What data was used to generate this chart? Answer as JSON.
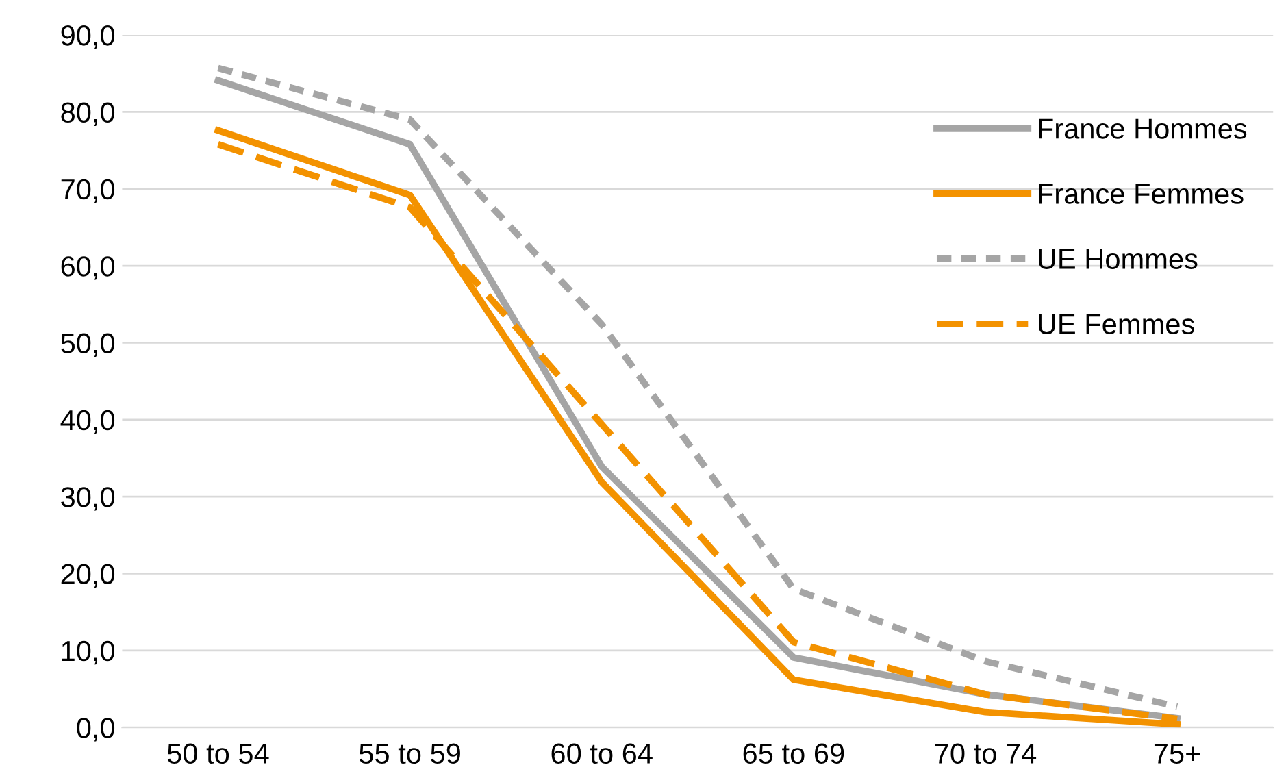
{
  "chart_data": {
    "type": "line",
    "categories": [
      "50 to 54",
      "55 to 59",
      "60 to 64",
      "65 to 69",
      "70 to 74",
      "75+"
    ],
    "series": [
      {
        "name": "France Hommes",
        "color": "#a5a5a5",
        "line_style": "solid",
        "values": [
          84.1,
          75.8,
          33.9,
          9.1,
          4.3,
          1.2
        ]
      },
      {
        "name": "France Femmes",
        "color": "#f39200",
        "line_style": "solid",
        "values": [
          77.6,
          69.2,
          31.9,
          6.2,
          2.0,
          0.4
        ]
      },
      {
        "name": "UE Hommes",
        "color": "#a5a5a5",
        "line_style": "dotted",
        "values": [
          85.7,
          79.0,
          52.4,
          18.0,
          8.6,
          2.7
        ]
      },
      {
        "name": "UE Femmes",
        "color": "#f39200",
        "line_style": "dashed",
        "values": [
          75.8,
          67.6,
          39.4,
          11.1,
          4.3,
          1.1
        ]
      }
    ],
    "ylim": [
      0,
      90
    ],
    "yticks": [
      {
        "value": 0,
        "label": "0,0"
      },
      {
        "value": 10,
        "label": "10,0"
      },
      {
        "value": 20,
        "label": "20,0"
      },
      {
        "value": 30,
        "label": "30,0"
      },
      {
        "value": 40,
        "label": "40,0"
      },
      {
        "value": 50,
        "label": "50,0"
      },
      {
        "value": 60,
        "label": "60,0"
      },
      {
        "value": 70,
        "label": "70,0"
      },
      {
        "value": 80,
        "label": "80,0"
      },
      {
        "value": 90,
        "label": "90,0"
      }
    ],
    "grid": "y",
    "legend": "right",
    "marker": "none"
  }
}
